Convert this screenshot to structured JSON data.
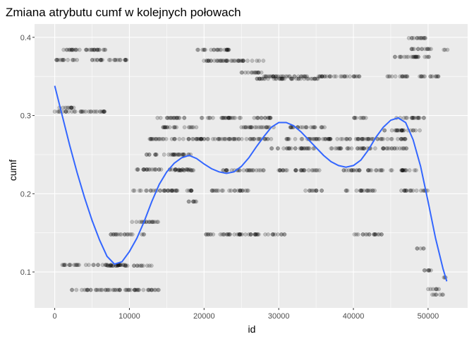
{
  "chart_data": {
    "type": "scatter",
    "title": "Zmiana atrybutu cumf w kolejnych połowach",
    "xlabel": "id",
    "ylabel": "cumf",
    "xlim": [
      -2700,
      55300
    ],
    "ylim": [
      0.054,
      0.417
    ],
    "x_ticks": [
      0,
      10000,
      20000,
      30000,
      40000,
      50000
    ],
    "x_tick_labels": [
      "0",
      "10000",
      "20000",
      "30000",
      "40000",
      "50000"
    ],
    "y_ticks": [
      0.1,
      0.2,
      0.3,
      0.4
    ],
    "y_tick_labels": [
      "0.1",
      "0.2",
      "0.3",
      "0.4"
    ],
    "grid": true,
    "legend": "none",
    "colors": {
      "panel": "#ebebeb",
      "grid": "#ffffff",
      "points": "#000000",
      "smooth": "#3366ff"
    },
    "point_alpha": 0.2,
    "point_clusters": [
      {
        "x": [
          0,
          2000
        ],
        "y": 0.305
      },
      {
        "x": [
          500,
          3000
        ],
        "y": 0.31
      },
      {
        "x": [
          2000,
          7000
        ],
        "y": 0.305
      },
      {
        "x": [
          1000,
          4500
        ],
        "y": 0.384
      },
      {
        "x": [
          3500,
          7000
        ],
        "y": 0.384
      },
      {
        "x": [
          0,
          3000
        ],
        "y": 0.371
      },
      {
        "x": [
          5000,
          10000
        ],
        "y": 0.371
      },
      {
        "x": [
          1000,
          9500
        ],
        "y": 0.109
      },
      {
        "x": [
          2000,
          14000
        ],
        "y": 0.077
      },
      {
        "x": [
          7000,
          13000
        ],
        "y": 0.108
      },
      {
        "x": [
          7500,
          12000
        ],
        "y": 0.148
      },
      {
        "x": [
          10000,
          14000
        ],
        "y": 0.164
      },
      {
        "x": [
          10000,
          16500
        ],
        "y": 0.204
      },
      {
        "x": [
          11000,
          18500
        ],
        "y": 0.231
      },
      {
        "x": [
          12000,
          18500
        ],
        "y": 0.25
      },
      {
        "x": [
          12500,
          20000
        ],
        "y": 0.27
      },
      {
        "x": [
          13500,
          17500
        ],
        "y": 0.297
      },
      {
        "x": [
          14500,
          19000
        ],
        "y": 0.285
      },
      {
        "x": [
          16000,
          19000
        ],
        "y": 0.23
      },
      {
        "x": [
          17000,
          18500
        ],
        "y": 0.204
      },
      {
        "x": [
          17500,
          19000
        ],
        "y": 0.19
      },
      {
        "x": [
          19000,
          24000
        ],
        "y": 0.384
      },
      {
        "x": [
          19500,
          28500
        ],
        "y": 0.37
      },
      {
        "x": [
          19000,
          24000
        ],
        "y": 0.27
      },
      {
        "x": [
          19500,
          25000
        ],
        "y": 0.297
      },
      {
        "x": [
          20000,
          31000
        ],
        "y": 0.148
      },
      {
        "x": [
          21000,
          26000
        ],
        "y": 0.204
      },
      {
        "x": [
          22000,
          28000
        ],
        "y": 0.23
      },
      {
        "x": [
          24000,
          29000
        ],
        "y": 0.27
      },
      {
        "x": [
          25000,
          30000
        ],
        "y": 0.285
      },
      {
        "x": [
          26000,
          29000
        ],
        "y": 0.297
      },
      {
        "x": [
          25000,
          28000
        ],
        "y": 0.355
      },
      {
        "x": [
          27000,
          35500
        ],
        "y": 0.347
      },
      {
        "x": [
          28000,
          36000
        ],
        "y": 0.35
      },
      {
        "x": [
          29000,
          35000
        ],
        "y": 0.258
      },
      {
        "x": [
          30000,
          36000
        ],
        "y": 0.23
      },
      {
        "x": [
          31000,
          37000
        ],
        "y": 0.27
      },
      {
        "x": [
          31500,
          36500
        ],
        "y": 0.285
      },
      {
        "x": [
          33500,
          36000
        ],
        "y": 0.204
      },
      {
        "x": [
          35500,
          41000
        ],
        "y": 0.35
      },
      {
        "x": [
          36000,
          43000
        ],
        "y": 0.27
      },
      {
        "x": [
          37000,
          43000
        ],
        "y": 0.258
      },
      {
        "x": [
          38500,
          44000
        ],
        "y": 0.23
      },
      {
        "x": [
          39000,
          43000
        ],
        "y": 0.204
      },
      {
        "x": [
          40000,
          44000
        ],
        "y": 0.148
      },
      {
        "x": [
          40000,
          42000
        ],
        "y": 0.297
      },
      {
        "x": [
          43000,
          47000
        ],
        "y": 0.27
      },
      {
        "x": [
          44000,
          49000
        ],
        "y": 0.281
      },
      {
        "x": [
          43500,
          47500
        ],
        "y": 0.258
      },
      {
        "x": [
          45000,
          48500
        ],
        "y": 0.23
      },
      {
        "x": [
          46000,
          50000
        ],
        "y": 0.204
      },
      {
        "x": [
          45500,
          49500
        ],
        "y": 0.297
      },
      {
        "x": [
          44500,
          47500
        ],
        "y": 0.35
      },
      {
        "x": [
          45500,
          50500
        ],
        "y": 0.375
      },
      {
        "x": [
          47500,
          50500
        ],
        "y": 0.385
      },
      {
        "x": [
          47000,
          50000
        ],
        "y": 0.399
      },
      {
        "x": [
          48500,
          51500
        ],
        "y": 0.35
      },
      {
        "x": [
          48500,
          49500
        ],
        "y": 0.13
      },
      {
        "x": [
          49500,
          51000
        ],
        "y": 0.102
      },
      {
        "x": [
          50000,
          51500
        ],
        "y": 0.078
      },
      {
        "x": [
          50500,
          52000
        ],
        "y": 0.071
      },
      {
        "x": [
          52000,
          52600
        ],
        "y": 0.384
      },
      {
        "x": [
          52000,
          52600
        ],
        "y": 0.093
      }
    ],
    "smooth_series": {
      "name": "",
      "x": [
        0,
        1000,
        2000,
        3000,
        4000,
        5000,
        6000,
        7000,
        8000,
        9000,
        10000,
        11000,
        12000,
        13000,
        14000,
        15000,
        16000,
        17000,
        18000,
        19000,
        20000,
        21000,
        22000,
        23000,
        24000,
        25000,
        26000,
        27000,
        28000,
        29000,
        30000,
        31000,
        32000,
        33000,
        34000,
        35000,
        36000,
        37000,
        38000,
        39000,
        40000,
        41000,
        42000,
        43000,
        44000,
        45000,
        46000,
        47000,
        48000,
        49000,
        50000,
        51000,
        52000,
        52500
      ],
      "y": [
        0.338,
        0.3,
        0.262,
        0.227,
        0.195,
        0.166,
        0.141,
        0.12,
        0.11,
        0.113,
        0.126,
        0.143,
        0.165,
        0.19,
        0.212,
        0.228,
        0.239,
        0.246,
        0.249,
        0.245,
        0.238,
        0.232,
        0.228,
        0.226,
        0.228,
        0.235,
        0.246,
        0.26,
        0.273,
        0.285,
        0.291,
        0.291,
        0.287,
        0.279,
        0.269,
        0.259,
        0.249,
        0.241,
        0.236,
        0.234,
        0.236,
        0.243,
        0.256,
        0.272,
        0.285,
        0.294,
        0.297,
        0.291,
        0.269,
        0.235,
        0.19,
        0.143,
        0.104,
        0.088
      ]
    }
  }
}
